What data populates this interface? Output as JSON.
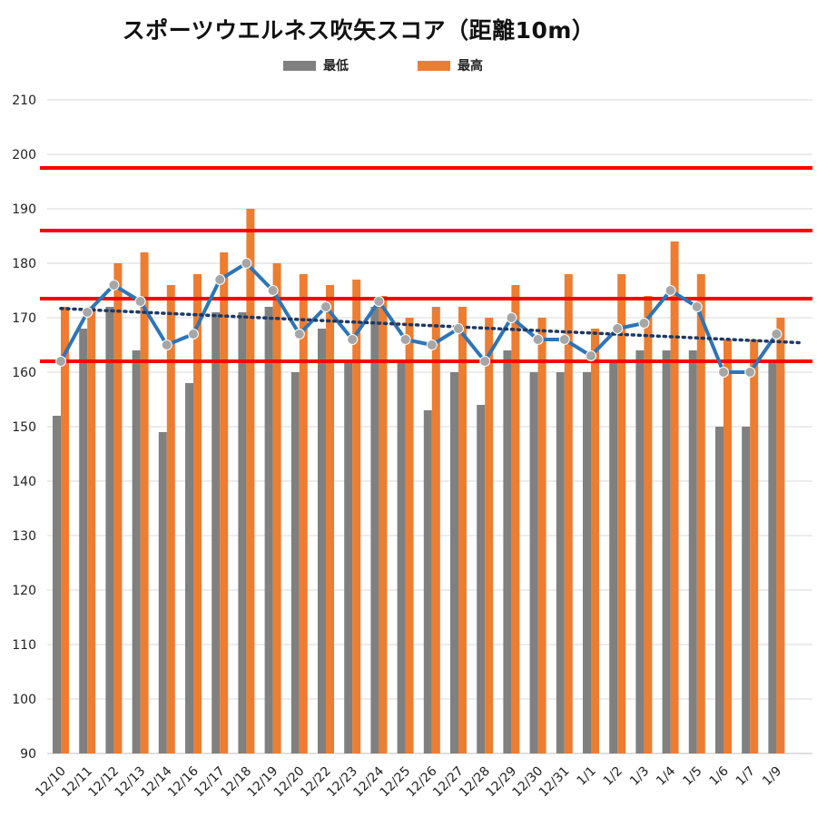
{
  "chart_data": {
    "type": "bar",
    "title": "スポーツウエルネス吹矢スコア（距離10m）",
    "categories": [
      "12/10",
      "12/11",
      "12/12",
      "12/13",
      "12/14",
      "12/16",
      "12/17",
      "12/18",
      "12/19",
      "12/20",
      "12/22",
      "12/23",
      "12/24",
      "12/25",
      "12/26",
      "12/27",
      "12/28",
      "12/29",
      "12/30",
      "12/31",
      "1/1",
      "1/2",
      "1/3",
      "1/4",
      "1/5",
      "1/6",
      "1/7",
      "1/9"
    ],
    "series": [
      {
        "name": "最低",
        "type": "bar",
        "color": "#808080",
        "values": [
          152,
          168,
          172,
          164,
          149,
          158,
          171,
          171,
          172,
          160,
          168,
          162,
          172,
          162,
          153,
          160,
          154,
          164,
          160,
          160,
          160,
          162,
          164,
          164,
          164,
          150,
          150,
          162
        ]
      },
      {
        "name": "最高",
        "type": "bar",
        "color": "#ED7D31",
        "values": [
          172,
          172,
          180,
          182,
          176,
          178,
          182,
          190,
          180,
          178,
          176,
          177,
          174,
          170,
          172,
          172,
          170,
          176,
          170,
          178,
          168,
          178,
          174,
          184,
          178,
          166,
          166,
          170
        ]
      },
      {
        "type": "line",
        "color": "#2E75B6",
        "marker_color": "#A6A6A6",
        "values": [
          162,
          171,
          176,
          173,
          165,
          167,
          177,
          180,
          175,
          167,
          172,
          166,
          173,
          166,
          165,
          168,
          162,
          170,
          166,
          166,
          163,
          168,
          169,
          175,
          172,
          160,
          160,
          167
        ]
      }
    ],
    "trendline": {
      "style": "dotted",
      "color": "#1F3864",
      "start": 171.7,
      "end": 165.4
    },
    "reference_lines": {
      "color": "#FF0000",
      "values": [
        162,
        173.5,
        186,
        197.5
      ]
    },
    "ylim": [
      90,
      210
    ],
    "yticks": [
      90,
      100,
      110,
      120,
      130,
      140,
      150,
      160,
      170,
      180,
      190,
      200,
      210
    ],
    "grid": true,
    "legend_position": "top"
  }
}
